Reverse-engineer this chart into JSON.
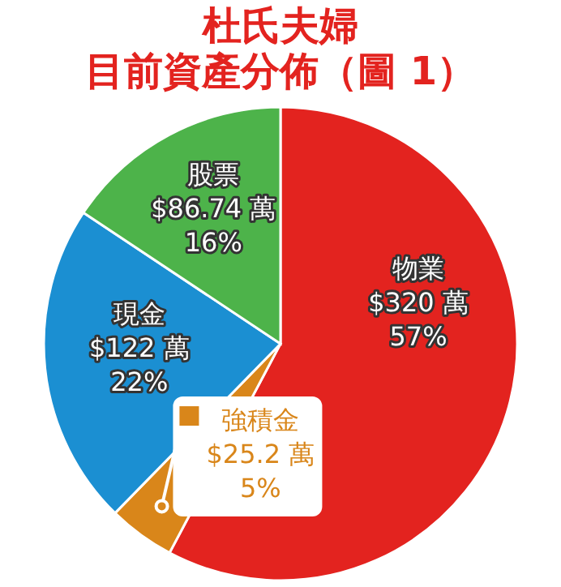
{
  "chart_data": {
    "type": "pie",
    "title": "杜氏夫婦",
    "subtitle": "目前資產分佈（圖 1）",
    "categories": [
      "物業",
      "強積金",
      "現金",
      "股票"
    ],
    "values": [
      320,
      25.2,
      122,
      86.74
    ],
    "value_labels": [
      "$320 萬\n57%",
      "$25.2 萬\n5%",
      "$122 萬\n22%",
      "$86.74 萬\n16%"
    ],
    "colors": [
      "#e3231f",
      "#d9861a",
      "#1b8fd2",
      "#4db34a"
    ]
  }
}
